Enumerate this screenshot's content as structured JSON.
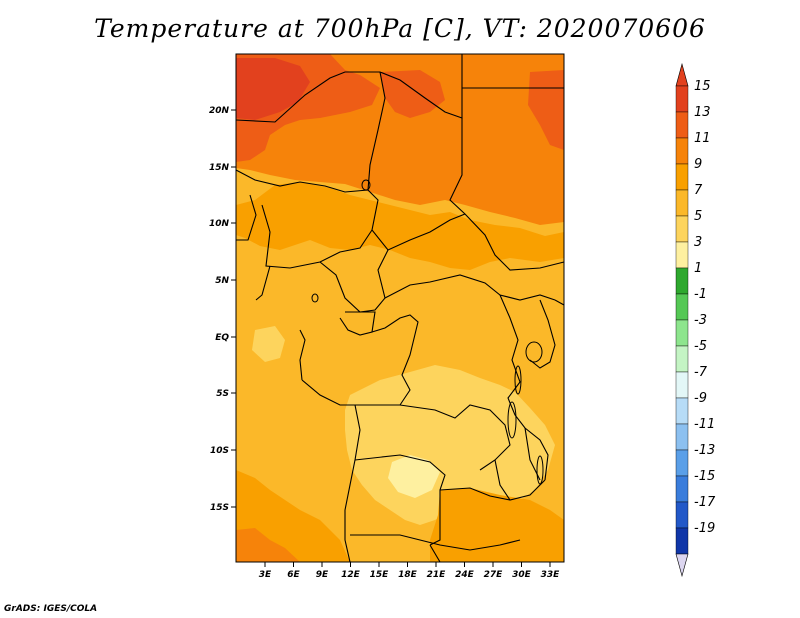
{
  "title": "Temperature at 700hPa [C], VT: 2020070606",
  "credit": "GrADS: IGES/COLA",
  "map": {
    "lon_ticks": [
      "3E",
      "6E",
      "9E",
      "12E",
      "15E",
      "18E",
      "21E",
      "24E",
      "27E",
      "30E",
      "33E"
    ],
    "lat_ticks": [
      "20N",
      "15N",
      "10N",
      "5N",
      "EQ",
      "5S",
      "10S",
      "15S"
    ]
  },
  "colorbar": {
    "labels": [
      "15",
      "13",
      "11",
      "9",
      "7",
      "5",
      "3",
      "1",
      "-1",
      "-3",
      "-5",
      "-7",
      "-9",
      "-11",
      "-13",
      "-15",
      "-17",
      "-19"
    ],
    "colors": [
      "#e2411e",
      "#ee5d16",
      "#f6830a",
      "#f9a000",
      "#fbb829",
      "#fdd45d",
      "#fef0a0",
      "#2ea82e",
      "#55c855",
      "#8de58d",
      "#c4f4c4",
      "#e3f7f7",
      "#b7dcf7",
      "#8cc0f0",
      "#5a9fe8",
      "#3a7ddc",
      "#2258c8",
      "#1036a8",
      "#0a1a78",
      "#dcd6f0"
    ]
  },
  "colors": {
    "top_arrow": "#e2411e",
    "bottom_arrow": "#dcd6f0",
    "borders": "#000000"
  }
}
